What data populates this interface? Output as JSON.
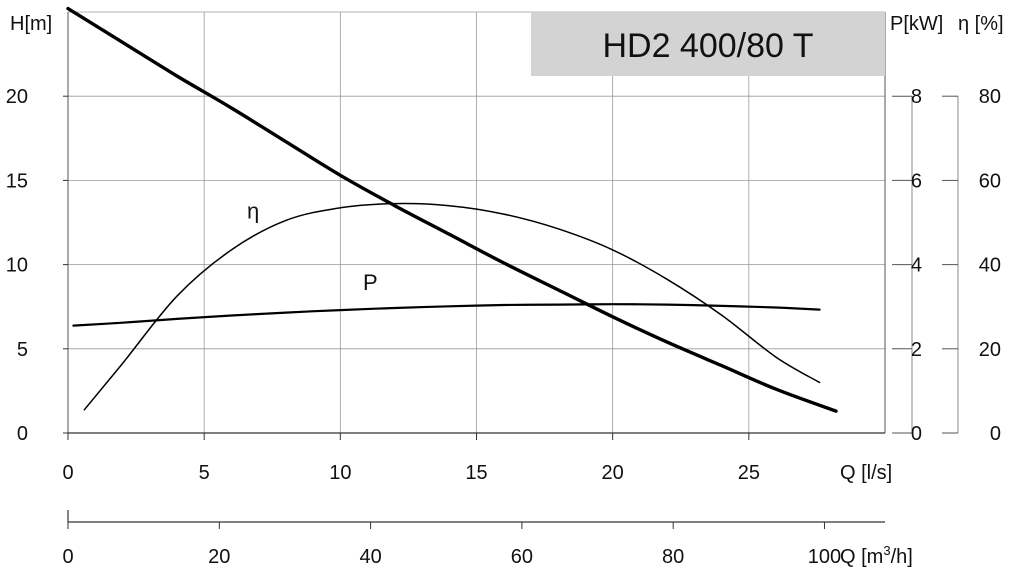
{
  "chart_data": {
    "type": "line",
    "title": "HD2 400/80 T",
    "title_box_color": "#d3d3d3",
    "grid": true,
    "x": {
      "label": "Q [l/s]",
      "range": [
        0,
        30
      ],
      "ticks": [
        0,
        5,
        10,
        15,
        20,
        25
      ]
    },
    "x2": {
      "label_prefix": "Q [m",
      "label_sup": "3",
      "label_suffix": "/h]",
      "range": [
        0,
        108
      ],
      "ticks": [
        0,
        20,
        40,
        60,
        80,
        100
      ]
    },
    "y_head": {
      "label": "H[m]",
      "range": [
        0,
        25
      ],
      "ticks": [
        0,
        5,
        10,
        15,
        20
      ]
    },
    "y_power": {
      "label": "P[kW]",
      "range": [
        0,
        10
      ],
      "ticks": [
        0,
        2,
        4,
        6,
        8
      ]
    },
    "y_eff": {
      "label": "η [%]",
      "range": [
        0,
        100
      ],
      "ticks": [
        0,
        20,
        40,
        60,
        80
      ]
    },
    "series": [
      {
        "name": "H",
        "axis": "y_head",
        "stroke": "#000000",
        "x": [
          0,
          2,
          4,
          6,
          8,
          10,
          12,
          14,
          16,
          18,
          20,
          22,
          24,
          26,
          28.2
        ],
        "y": [
          25.2,
          23.2,
          21.2,
          19.3,
          17.3,
          15.3,
          13.5,
          11.8,
          10.1,
          8.5,
          6.9,
          5.4,
          4.0,
          2.6,
          1.3
        ]
      },
      {
        "name": "η",
        "axis": "y_eff",
        "stroke": "#000000",
        "x": [
          0.6,
          2,
          4,
          6,
          8,
          10,
          12,
          14,
          16,
          18,
          20,
          22,
          24,
          26,
          27.6
        ],
        "y": [
          5.5,
          16.5,
          32.5,
          43.5,
          50.5,
          53.5,
          54.5,
          54.0,
          52.0,
          48.5,
          43.5,
          36.5,
          28.0,
          18.0,
          12.0
        ]
      },
      {
        "name": "P",
        "axis": "y_power",
        "stroke": "#000000",
        "x": [
          0.2,
          2,
          4,
          6,
          8,
          10,
          12,
          14,
          16,
          18,
          20,
          22,
          24,
          26,
          27.6
        ],
        "y": [
          2.55,
          2.62,
          2.71,
          2.79,
          2.86,
          2.92,
          2.97,
          3.01,
          3.04,
          3.05,
          3.06,
          3.05,
          3.02,
          2.98,
          2.93
        ]
      }
    ],
    "curve_labels": [
      {
        "text": "η",
        "at": [
          6.8,
          51
        ]
      },
      {
        "text": "P",
        "at": [
          11.1,
          3.4
        ]
      }
    ]
  }
}
